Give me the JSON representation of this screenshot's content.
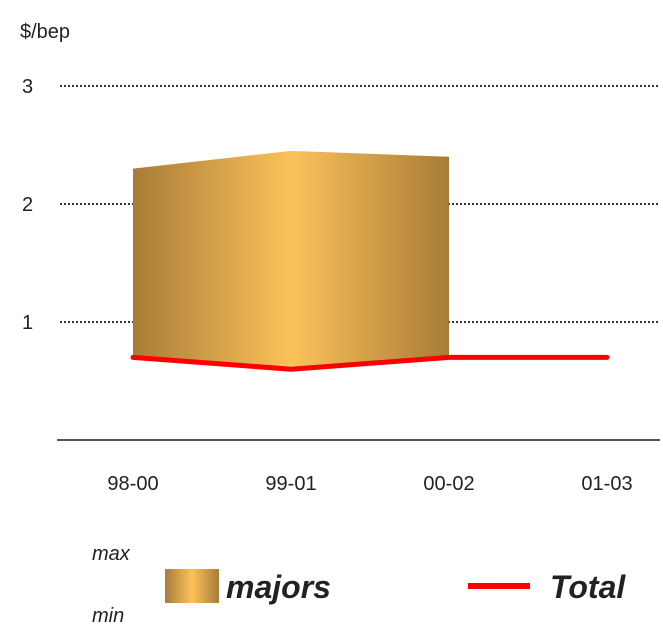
{
  "chart_data": {
    "type": "area",
    "unit_label": "$/bep",
    "categories": [
      "98-00",
      "99-01",
      "00-02",
      "01-03"
    ],
    "ylim": [
      0,
      3
    ],
    "yticks": [
      1,
      2,
      3
    ],
    "grid": true,
    "series": [
      {
        "name": "majors",
        "kind": "range-band",
        "min": [
          0.7,
          0.6,
          0.7
        ],
        "max": [
          2.3,
          2.45,
          2.4
        ],
        "color_light": "#fcc25a",
        "color_dark": "#a87c38"
      },
      {
        "name": "Total",
        "kind": "line",
        "values": [
          0.7,
          0.6,
          0.7,
          0.7
        ],
        "color": "#ff0000"
      }
    ],
    "legend": {
      "max_label": "max",
      "min_label": "min",
      "band_label": "majors",
      "line_label": "Total",
      "placement": "bottom"
    }
  }
}
